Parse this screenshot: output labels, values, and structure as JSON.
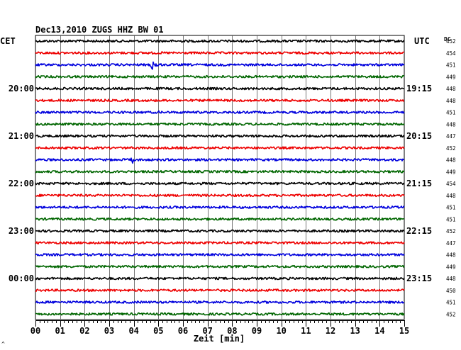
{
  "chart_data": {
    "type": "line",
    "title": "Dec13,2010   ZUGS HHZ BW 01",
    "left_axis_label": "CET",
    "right_axis_label": "UTC",
    "dc_label": "DC",
    "xlabel": "Zeit [min]",
    "x_ticks": [
      "00",
      "01",
      "02",
      "03",
      "04",
      "05",
      "06",
      "07",
      "08",
      "09",
      "10",
      "11",
      "12",
      "13",
      "14",
      "15"
    ],
    "xlim": [
      0,
      15
    ],
    "cet_hour_labels": [
      "20:00",
      "21:00",
      "22:00",
      "23:00",
      "00:00"
    ],
    "utc_hour_labels": [
      "19:15",
      "20:15",
      "21:15",
      "22:15",
      "23:15"
    ],
    "hour_label_rows": [
      4,
      8,
      12,
      16,
      20
    ],
    "dc_values": [
      452,
      454,
      451,
      449,
      448,
      448,
      451,
      448,
      447,
      452,
      448,
      449,
      454,
      448,
      451,
      451,
      452,
      447,
      448,
      449,
      448,
      450,
      451,
      452
    ],
    "trace_colors": [
      "#000000",
      "#ee0000",
      "#0000dd",
      "#006600"
    ],
    "events": [
      {
        "row": 2,
        "minute": 4.7,
        "amplitude": 9,
        "duration_min": 0.55
      },
      {
        "row": 6,
        "minute": 5.0,
        "amplitude": 2.5,
        "duration_min": 0.2
      },
      {
        "row": 10,
        "minute": 3.93,
        "amplitude": 13,
        "duration_min": 0.05
      }
    ],
    "grid": true,
    "footer_mark": "^"
  }
}
